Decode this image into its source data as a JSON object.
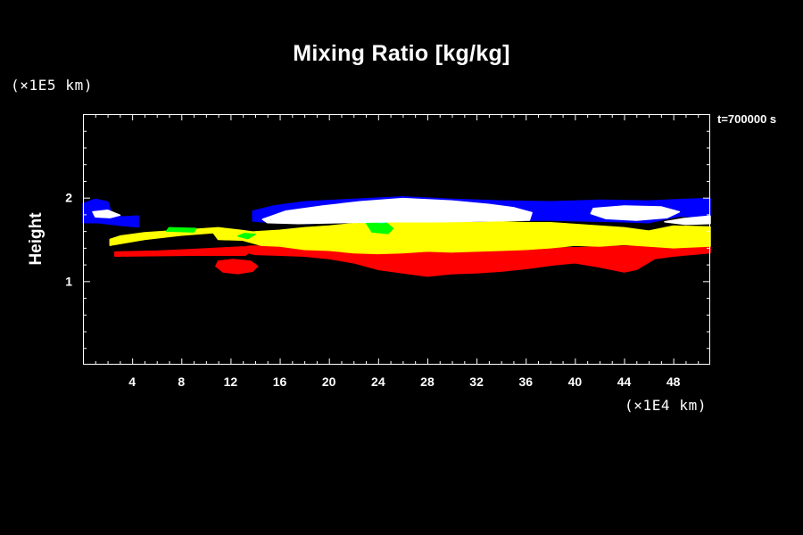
{
  "chart_data": {
    "type": "heatmap",
    "title": "Mixing Ratio [kg/kg]",
    "ylabel": "Height",
    "xunit": "(×1E4 km)",
    "yunit": "(×1E5 km)",
    "time_label": "t=700000 s",
    "xlim": [
      0,
      51
    ],
    "ylim": [
      0,
      3
    ],
    "xticks": [
      4,
      8,
      12,
      16,
      20,
      24,
      28,
      32,
      36,
      40,
      44,
      48
    ],
    "yticks": [
      1,
      2
    ],
    "colors": {
      "lowest": "#ff0000",
      "low": "#ffff00",
      "mid": "#00ff00",
      "mid_high": "#00ffff",
      "high": "#0000ff",
      "highest": "#ffffff"
    },
    "layers": [
      {
        "level": "lowest",
        "color": "#ff0000",
        "polygon": [
          [
            12.8,
            1.36
          ],
          [
            14,
            1.32
          ],
          [
            16,
            1.31
          ],
          [
            18,
            1.3
          ],
          [
            20,
            1.27
          ],
          [
            22,
            1.22
          ],
          [
            24,
            1.14
          ],
          [
            26,
            1.1
          ],
          [
            28,
            1.06
          ],
          [
            30,
            1.09
          ],
          [
            32,
            1.1
          ],
          [
            34,
            1.12
          ],
          [
            36,
            1.15
          ],
          [
            38,
            1.19
          ],
          [
            40,
            1.22
          ],
          [
            42,
            1.17
          ],
          [
            44,
            1.11
          ],
          [
            45,
            1.14
          ],
          [
            46.5,
            1.27
          ],
          [
            48,
            1.3
          ],
          [
            51,
            1.34
          ],
          [
            51,
            1.42
          ],
          [
            48,
            1.41
          ],
          [
            44,
            1.42
          ],
          [
            40,
            1.4
          ],
          [
            36,
            1.4
          ],
          [
            32,
            1.42
          ],
          [
            28,
            1.42
          ],
          [
            24,
            1.43
          ],
          [
            20,
            1.43
          ],
          [
            16,
            1.42
          ],
          [
            13.6,
            1.42
          ],
          [
            12.8,
            1.4
          ]
        ]
      },
      {
        "level": "lowest",
        "color": "#ff0000",
        "polygon": [
          [
            2.6,
            1.3
          ],
          [
            9,
            1.31
          ],
          [
            13.2,
            1.31
          ],
          [
            13.6,
            1.36
          ],
          [
            13,
            1.41
          ],
          [
            9,
            1.38
          ],
          [
            6,
            1.36
          ],
          [
            2.6,
            1.35
          ]
        ]
      },
      {
        "level": "lowest",
        "color": "#ff0000",
        "polygon": [
          [
            10.8,
            1.18
          ],
          [
            11.4,
            1.11
          ],
          [
            12.6,
            1.09
          ],
          [
            13.8,
            1.12
          ],
          [
            14.2,
            1.18
          ],
          [
            13.6,
            1.24
          ],
          [
            12.2,
            1.26
          ],
          [
            11,
            1.24
          ]
        ]
      },
      {
        "level": "low",
        "color": "#ffff00",
        "polygon": [
          [
            2.2,
            1.43
          ],
          [
            5,
            1.5
          ],
          [
            8,
            1.55
          ],
          [
            10.6,
            1.58
          ],
          [
            11,
            1.5
          ],
          [
            13,
            1.49
          ],
          [
            14.5,
            1.43
          ],
          [
            16,
            1.42
          ],
          [
            18,
            1.38
          ],
          [
            20,
            1.37
          ],
          [
            22,
            1.34
          ],
          [
            24,
            1.33
          ],
          [
            26,
            1.34
          ],
          [
            28,
            1.36
          ],
          [
            30,
            1.35
          ],
          [
            32,
            1.36
          ],
          [
            34,
            1.37
          ],
          [
            36,
            1.38
          ],
          [
            38,
            1.4
          ],
          [
            40,
            1.43
          ],
          [
            42,
            1.42
          ],
          [
            44,
            1.44
          ],
          [
            46,
            1.42
          ],
          [
            48,
            1.4
          ],
          [
            51,
            1.42
          ],
          [
            51,
            1.65
          ],
          [
            48,
            1.66
          ],
          [
            46,
            1.6
          ],
          [
            44,
            1.64
          ],
          [
            42,
            1.66
          ],
          [
            40,
            1.68
          ],
          [
            38,
            1.7
          ],
          [
            36,
            1.7
          ],
          [
            34,
            1.71
          ],
          [
            32,
            1.7
          ],
          [
            30,
            1.71
          ],
          [
            28,
            1.72
          ],
          [
            26,
            1.72
          ],
          [
            24,
            1.7
          ],
          [
            22,
            1.69
          ],
          [
            20,
            1.66
          ],
          [
            18,
            1.64
          ],
          [
            16,
            1.61
          ],
          [
            13.8,
            1.59
          ],
          [
            12.8,
            1.61
          ],
          [
            11,
            1.64
          ],
          [
            8,
            1.61
          ],
          [
            5,
            1.58
          ],
          [
            3,
            1.54
          ],
          [
            2.2,
            1.5
          ]
        ]
      },
      {
        "level": "mid",
        "color": "#00ff00",
        "polygon": [
          [
            22.8,
            1.75
          ],
          [
            23.5,
            1.59
          ],
          [
            24.8,
            1.57
          ],
          [
            25.2,
            1.63
          ],
          [
            24.5,
            1.72
          ],
          [
            23.6,
            1.78
          ]
        ]
      },
      {
        "level": "mid",
        "color": "#00ff00",
        "polygon": [
          [
            6.8,
            1.6
          ],
          [
            9,
            1.59
          ],
          [
            9.2,
            1.63
          ],
          [
            7,
            1.64
          ]
        ]
      },
      {
        "level": "mid",
        "color": "#00ff00",
        "polygon": [
          [
            12.6,
            1.54
          ],
          [
            13.4,
            1.51
          ],
          [
            14,
            1.56
          ],
          [
            13.1,
            1.57
          ]
        ]
      },
      {
        "level": "mid_high",
        "color": "#00ffff",
        "polygon": [
          [
            23.3,
            1.8
          ],
          [
            24.1,
            1.7
          ],
          [
            24.9,
            1.71
          ],
          [
            24.6,
            1.8
          ]
        ]
      },
      {
        "level": "high",
        "color": "#0000ff",
        "polygon": [
          [
            0,
            1.93
          ],
          [
            1,
            1.98
          ],
          [
            2,
            1.95
          ],
          [
            2.3,
            1.82
          ],
          [
            3.2,
            1.77
          ],
          [
            4.5,
            1.78
          ],
          [
            4.5,
            1.65
          ],
          [
            3,
            1.67
          ],
          [
            1.2,
            1.7
          ],
          [
            0,
            1.7
          ]
        ]
      },
      {
        "level": "high",
        "color": "#0000ff",
        "polygon": [
          [
            13.8,
            1.84
          ],
          [
            15.5,
            1.9
          ],
          [
            18,
            1.95
          ],
          [
            22,
            1.98
          ],
          [
            26,
            2.01
          ],
          [
            30,
            1.98
          ],
          [
            34,
            1.96
          ],
          [
            38,
            1.95
          ],
          [
            42,
            1.97
          ],
          [
            46,
            1.96
          ],
          [
            49,
            1.98
          ],
          [
            51,
            1.99
          ],
          [
            51,
            1.77
          ],
          [
            48.5,
            1.78
          ],
          [
            46,
            1.7
          ],
          [
            44,
            1.71
          ],
          [
            41,
            1.72
          ],
          [
            38,
            1.73
          ],
          [
            34,
            1.73
          ],
          [
            30,
            1.72
          ],
          [
            26,
            1.72
          ],
          [
            22,
            1.71
          ],
          [
            18,
            1.69
          ],
          [
            15.5,
            1.7
          ],
          [
            13.8,
            1.72
          ]
        ]
      },
      {
        "level": "highest",
        "color": "#ffffff",
        "polygon": [
          [
            14.6,
            1.74
          ],
          [
            16.5,
            1.84
          ],
          [
            19.5,
            1.9
          ],
          [
            22.5,
            1.95
          ],
          [
            26,
            1.99
          ],
          [
            30,
            1.96
          ],
          [
            33,
            1.92
          ],
          [
            35,
            1.88
          ],
          [
            36.5,
            1.82
          ],
          [
            36.3,
            1.73
          ],
          [
            33,
            1.72
          ],
          [
            29,
            1.71
          ],
          [
            25,
            1.71
          ],
          [
            21,
            1.7
          ],
          [
            17.5,
            1.69
          ],
          [
            15,
            1.7
          ]
        ]
      },
      {
        "level": "highest",
        "color": "#ffffff",
        "polygon": [
          [
            41.5,
            1.87
          ],
          [
            44,
            1.9
          ],
          [
            47,
            1.89
          ],
          [
            48.5,
            1.83
          ],
          [
            47.5,
            1.76
          ],
          [
            45,
            1.73
          ],
          [
            42.5,
            1.75
          ],
          [
            41.3,
            1.81
          ]
        ]
      },
      {
        "level": "highest",
        "color": "#ffffff",
        "polygon": [
          [
            0.8,
            1.83
          ],
          [
            2,
            1.85
          ],
          [
            3,
            1.79
          ],
          [
            2.2,
            1.76
          ],
          [
            1,
            1.77
          ]
        ]
      },
      {
        "level": "highest",
        "color": "#ffffff",
        "polygon": [
          [
            51,
            1.78
          ],
          [
            48.8,
            1.75
          ],
          [
            47.3,
            1.71
          ],
          [
            49,
            1.68
          ],
          [
            51,
            1.69
          ]
        ]
      }
    ]
  }
}
